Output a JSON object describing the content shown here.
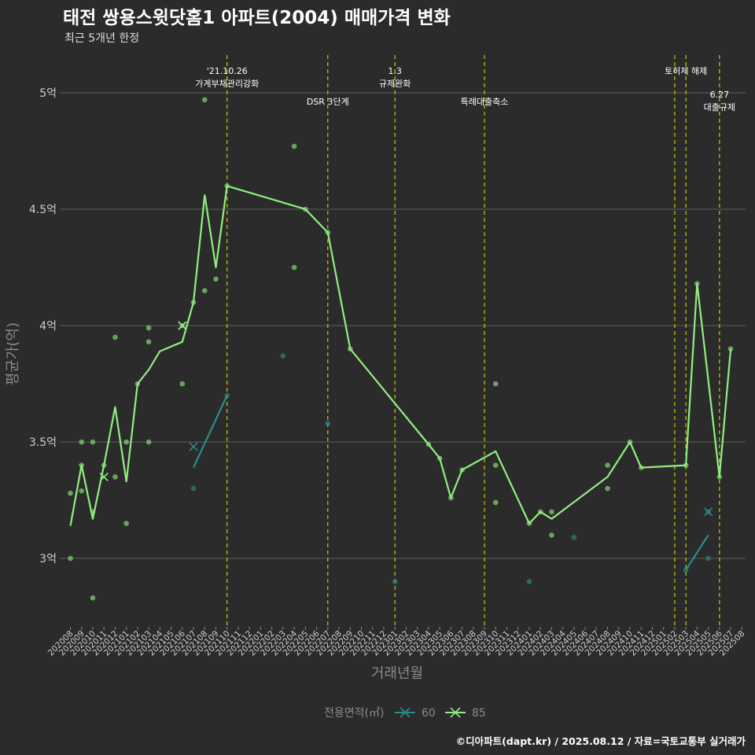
{
  "title": "태전 쌍용스윗닷홈1 아파트(2004) 매매가격 변화",
  "subtitle": "최근 5개년 한정",
  "caption": "©디아파트(dapt.kr) / 2025.08.12 / 자료=국토교통부 실거래가",
  "colors": {
    "background": "#2b2b2b",
    "grid": "#5c5c5c",
    "event_line": "#d8d800",
    "series_85": "#90ee80",
    "series_60": "#2a8c8c"
  },
  "chart_data": {
    "type": "line",
    "xlabel": "거래년월",
    "ylabel": "평균가(억)",
    "ylim": [
      2.7,
      5.18
    ],
    "yticks": [
      {
        "value": 3.0,
        "label": "3억"
      },
      {
        "value": 3.5,
        "label": "3.5억"
      },
      {
        "value": 4.0,
        "label": "4억"
      },
      {
        "value": 4.5,
        "label": "4.5억"
      },
      {
        "value": 5.0,
        "label": "5억"
      }
    ],
    "categories": [
      "202008",
      "202009",
      "202010",
      "202011",
      "202012",
      "202101",
      "202102",
      "202103",
      "202104",
      "202105",
      "202106",
      "202107",
      "202108",
      "202109",
      "202110",
      "202111",
      "202112",
      "202201",
      "202202",
      "202203",
      "202204",
      "202205",
      "202206",
      "202207",
      "202208",
      "202209",
      "202210",
      "202211",
      "202212",
      "202301",
      "202302",
      "202303",
      "202304",
      "202305",
      "202306",
      "202307",
      "202308",
      "202309",
      "202310",
      "202311",
      "202312",
      "202401",
      "202402",
      "202403",
      "202404",
      "202405",
      "202406",
      "202407",
      "202408",
      "202409",
      "202410",
      "202411",
      "202412",
      "202501",
      "202502",
      "202503",
      "202504",
      "202505",
      "202506",
      "202507",
      "202508"
    ],
    "legend": {
      "title": "전용면적(㎡)",
      "items": [
        {
          "name": "60",
          "color": "#2a8c8c"
        },
        {
          "name": "85",
          "color": "#90ee80"
        }
      ]
    },
    "events": [
      {
        "x": 14.0,
        "lines": [
          "'21.10.26",
          "가계부채관리강화"
        ],
        "row": 1
      },
      {
        "x": 23.0,
        "lines": [
          "DSR 3단계"
        ],
        "row": 2
      },
      {
        "x": 29.0,
        "lines": [
          "1.3",
          "규제완화"
        ],
        "row": 1
      },
      {
        "x": 37.0,
        "lines": [
          "특례대출축소"
        ],
        "row": 2
      },
      {
        "x": 54.0,
        "lines": [],
        "row": 0
      },
      {
        "x": 55.0,
        "lines": [
          "토허제 해제"
        ],
        "row": 1
      },
      {
        "x": 58.0,
        "lines": [
          "6.27",
          "대출규제"
        ],
        "row": 3
      }
    ],
    "series": [
      {
        "name": "85",
        "line": [
          [
            0,
            3.14
          ],
          [
            1,
            3.4
          ],
          [
            2,
            3.17
          ],
          [
            3,
            3.4
          ],
          [
            4,
            3.65
          ],
          [
            5,
            3.33
          ],
          [
            6,
            3.75
          ],
          [
            7,
            3.81
          ],
          [
            8,
            3.89
          ],
          [
            10,
            3.93
          ],
          [
            11,
            4.1
          ],
          [
            12,
            4.56
          ],
          [
            13,
            4.25
          ],
          [
            14,
            4.6
          ],
          [
            21,
            4.5
          ],
          [
            23,
            4.4
          ],
          [
            25,
            3.9
          ],
          [
            32,
            3.49
          ],
          [
            33,
            3.43
          ],
          [
            34,
            3.26
          ],
          [
            35,
            3.38
          ],
          [
            38,
            3.46
          ],
          [
            41,
            3.15
          ],
          [
            42,
            3.2
          ],
          [
            43,
            3.17
          ],
          [
            48,
            3.35
          ],
          [
            50,
            3.5
          ],
          [
            51,
            3.39
          ],
          [
            55,
            3.4
          ],
          [
            56,
            4.18
          ],
          [
            58,
            3.35
          ],
          [
            59,
            3.9
          ]
        ],
        "points": [
          [
            0,
            3.28
          ],
          [
            0,
            3.0
          ],
          [
            1,
            3.5
          ],
          [
            1,
            3.29
          ],
          [
            1,
            3.4
          ],
          [
            2,
            3.5
          ],
          [
            2,
            3.2
          ],
          [
            2,
            2.83
          ],
          [
            3,
            3.4
          ],
          [
            4,
            3.95
          ],
          [
            4,
            3.35
          ],
          [
            5,
            3.5
          ],
          [
            5,
            3.15
          ],
          [
            6,
            3.75
          ],
          [
            7,
            3.99
          ],
          [
            7,
            3.93
          ],
          [
            7,
            3.5
          ],
          [
            10,
            4.0
          ],
          [
            10,
            3.75
          ],
          [
            11,
            4.1
          ],
          [
            12,
            4.97
          ],
          [
            12,
            4.15
          ],
          [
            13,
            4.2
          ],
          [
            14,
            4.6
          ],
          [
            20,
            4.77
          ],
          [
            20,
            4.25
          ],
          [
            21,
            4.5
          ],
          [
            23,
            4.4
          ],
          [
            25,
            3.9
          ],
          [
            32,
            3.49
          ],
          [
            33,
            3.43
          ],
          [
            34,
            3.26
          ],
          [
            35,
            3.38
          ],
          [
            38,
            3.75
          ],
          [
            38,
            3.4
          ],
          [
            38,
            3.24
          ],
          [
            41,
            3.15
          ],
          [
            42,
            3.2
          ],
          [
            43,
            3.2
          ],
          [
            43,
            3.1
          ],
          [
            48,
            3.4
          ],
          [
            48,
            3.3
          ],
          [
            50,
            3.5
          ],
          [
            51,
            3.39
          ],
          [
            55,
            3.4
          ],
          [
            56,
            4.18
          ],
          [
            58,
            3.35
          ],
          [
            59,
            3.9
          ]
        ],
        "markers": [
          [
            3,
            3.35
          ],
          [
            10,
            4.0
          ]
        ]
      },
      {
        "name": "60",
        "line": [
          [
            11,
            3.39
          ],
          [
            14,
            3.7
          ]
        ],
        "line2": [
          [
            55,
            2.95
          ],
          [
            57,
            3.1
          ]
        ],
        "points": [
          [
            11,
            3.3
          ],
          [
            14,
            3.7
          ],
          [
            19,
            3.87
          ],
          [
            23,
            3.58
          ],
          [
            29,
            2.9
          ],
          [
            41,
            2.9
          ],
          [
            45,
            3.09
          ],
          [
            55,
            2.95
          ],
          [
            57,
            3.0
          ],
          [
            57,
            3.2
          ]
        ],
        "markers": [
          [
            11,
            3.48
          ],
          [
            57,
            3.2
          ]
        ]
      }
    ]
  }
}
